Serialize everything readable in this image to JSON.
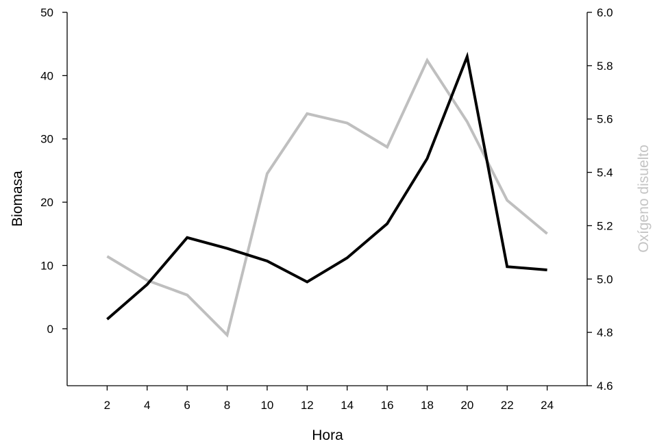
{
  "chart_data": {
    "type": "line",
    "xlabel": "Hora",
    "ylabel": "Biomasa",
    "y2label": "Oxígeno disuelto",
    "x": [
      2,
      4,
      6,
      8,
      10,
      12,
      14,
      16,
      18,
      20,
      22,
      24
    ],
    "xlim": [
      0,
      26
    ],
    "ylim": [
      -9,
      50
    ],
    "y2lim": [
      4.6,
      6.0
    ],
    "y_ticks": [
      0,
      10,
      20,
      30,
      40,
      50
    ],
    "y2_ticks": [
      "4.6",
      "4.8",
      "5.0",
      "5.2",
      "5.4",
      "5.6",
      "5.8",
      "6.0"
    ],
    "grid": false,
    "series": [
      {
        "axis": "left",
        "color": "#000000",
        "values": [
          1.5,
          7.0,
          14.4,
          12.7,
          10.7,
          7.4,
          11.2,
          16.6,
          26.9,
          43.0,
          9.8,
          9.3
        ]
      },
      {
        "axis": "right",
        "color": "#bfbfbf",
        "values": [
          5.085,
          4.995,
          4.94,
          4.79,
          5.395,
          5.62,
          5.585,
          5.495,
          5.82,
          5.59,
          5.295,
          5.17
        ]
      }
    ]
  }
}
